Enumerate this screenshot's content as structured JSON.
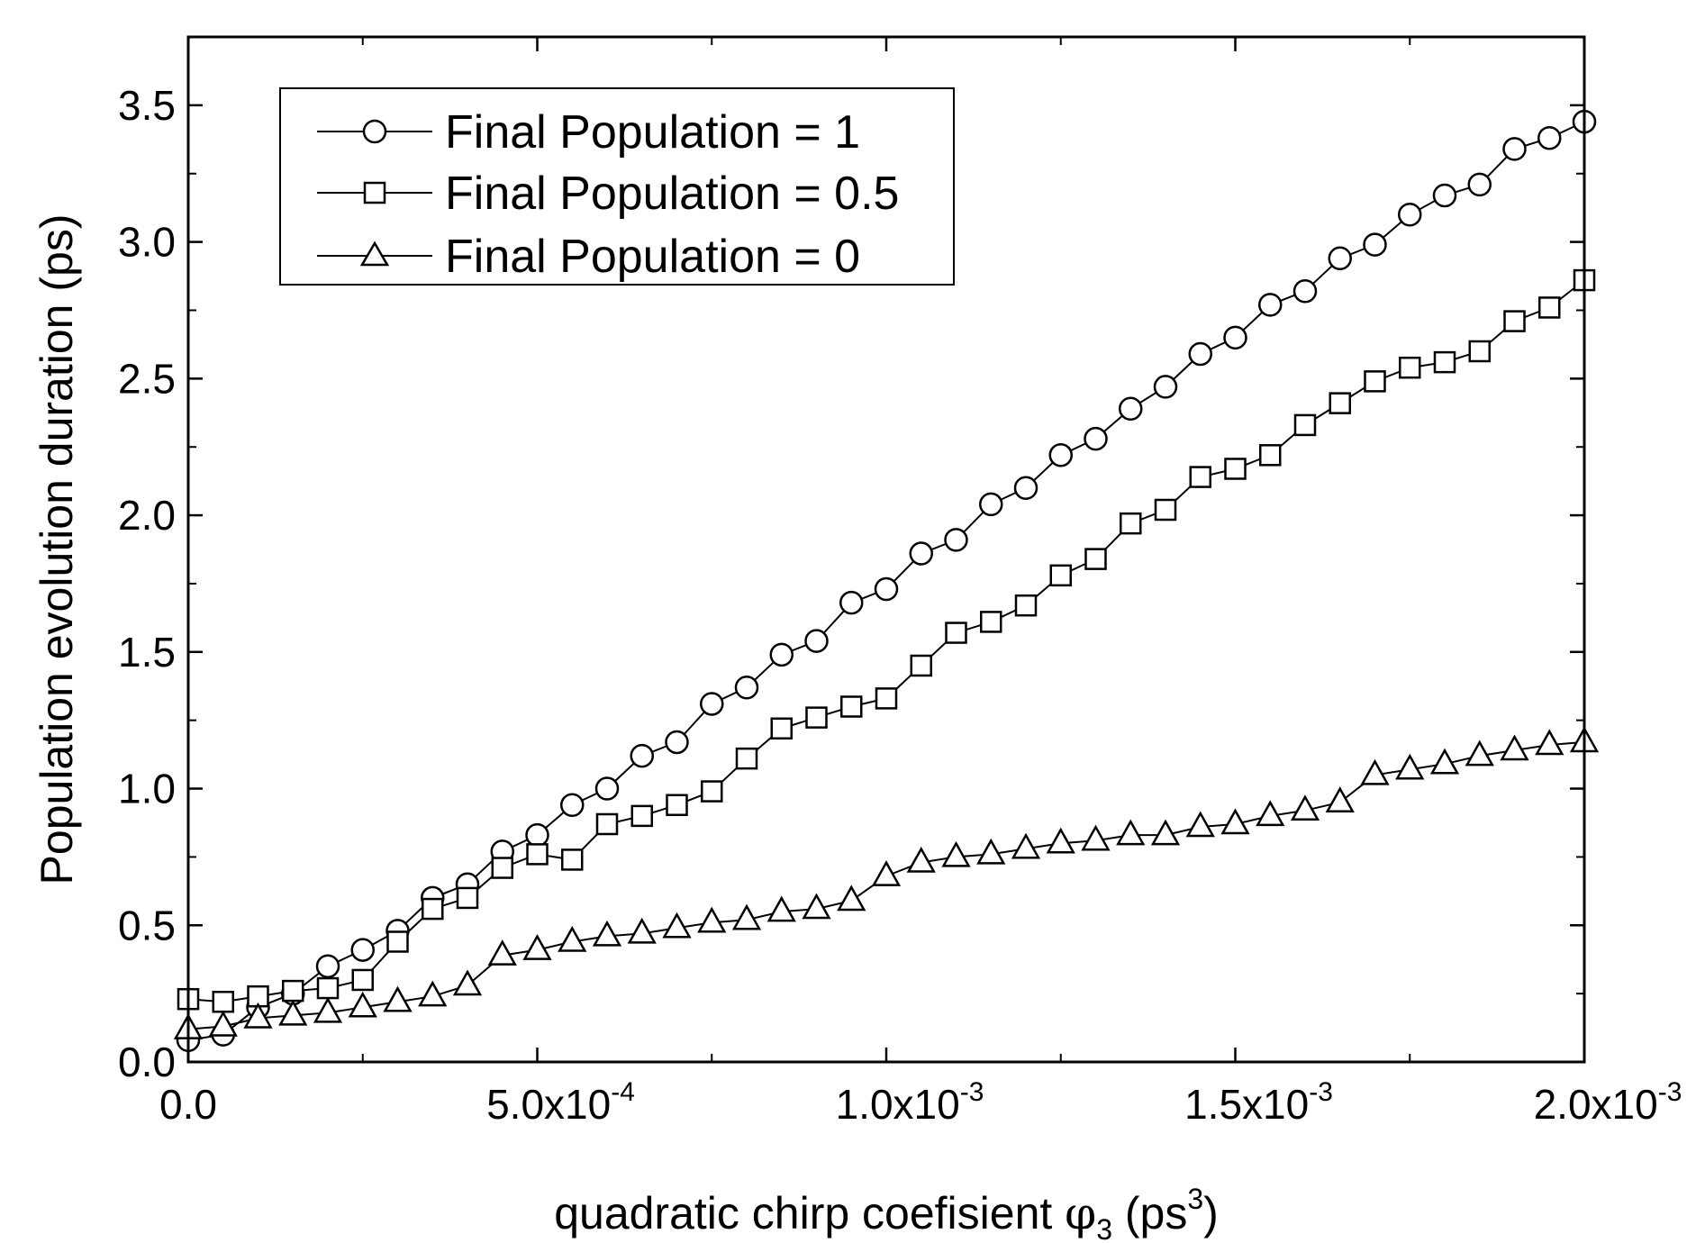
{
  "chart_data": {
    "type": "line",
    "title": "",
    "xlabel": {
      "main": "quadratic chirp coefisient ",
      "symbol": "φ",
      "sub": "3",
      "unit_open": " (ps",
      "unit_sup": "3",
      "unit_close": ")"
    },
    "ylabel": "Population evolution duration (ps)",
    "xlim": [
      0,
      0.002
    ],
    "ylim": [
      0,
      3.75
    ],
    "grid": false,
    "legend_position": "top-left",
    "x_ticks": [
      {
        "value": 0,
        "mantissa": "0.0",
        "exp": ""
      },
      {
        "value": 0.0005,
        "mantissa": "5.0x10",
        "exp": "-4"
      },
      {
        "value": 0.001,
        "mantissa": "1.0x10",
        "exp": "-3"
      },
      {
        "value": 0.0015,
        "mantissa": "1.5x10",
        "exp": "-3"
      },
      {
        "value": 0.002,
        "mantissa": "2.0x10",
        "exp": "-3"
      }
    ],
    "y_ticks": [
      {
        "value": 0.0,
        "label": "0.0"
      },
      {
        "value": 0.5,
        "label": "0.5"
      },
      {
        "value": 1.0,
        "label": "1.0"
      },
      {
        "value": 1.5,
        "label": "1.5"
      },
      {
        "value": 2.0,
        "label": "2.0"
      },
      {
        "value": 2.5,
        "label": "2.5"
      },
      {
        "value": 3.0,
        "label": "3.0"
      },
      {
        "value": 3.5,
        "label": "3.5"
      }
    ],
    "x": [
      0,
      5e-05,
      0.0001,
      0.00015,
      0.0002,
      0.00025,
      0.0003,
      0.00035,
      0.0004,
      0.00045,
      0.0005,
      0.00055,
      0.0006,
      0.00065,
      0.0007,
      0.00075,
      0.0008,
      0.00085,
      0.0009,
      0.00095,
      0.001,
      0.00105,
      0.0011,
      0.00115,
      0.0012,
      0.00125,
      0.0013,
      0.00135,
      0.0014,
      0.00145,
      0.0015,
      0.00155,
      0.0016,
      0.00165,
      0.0017,
      0.00175,
      0.0018,
      0.00185,
      0.0019,
      0.00195,
      0.002
    ],
    "series": [
      {
        "name": "Final Population = 1",
        "marker": "circle",
        "values": [
          0.08,
          0.1,
          0.2,
          0.25,
          0.35,
          0.41,
          0.48,
          0.6,
          0.65,
          0.77,
          0.83,
          0.94,
          1.0,
          1.12,
          1.17,
          1.31,
          1.37,
          1.49,
          1.54,
          1.68,
          1.73,
          1.86,
          1.91,
          2.04,
          2.1,
          2.22,
          2.28,
          2.39,
          2.47,
          2.59,
          2.65,
          2.77,
          2.82,
          2.94,
          2.99,
          3.1,
          3.17,
          3.21,
          3.34,
          3.38,
          3.44
        ]
      },
      {
        "name": "Final Population = 0.5",
        "marker": "square",
        "values": [
          0.23,
          0.22,
          0.24,
          0.26,
          0.27,
          0.3,
          0.44,
          0.56,
          0.6,
          0.71,
          0.76,
          0.74,
          0.87,
          0.9,
          0.94,
          0.99,
          1.11,
          1.22,
          1.26,
          1.3,
          1.33,
          1.45,
          1.57,
          1.61,
          1.67,
          1.78,
          1.84,
          1.97,
          2.02,
          2.14,
          2.17,
          2.22,
          2.33,
          2.41,
          2.49,
          2.54,
          2.56,
          2.6,
          2.71,
          2.76,
          2.86
        ]
      },
      {
        "name": "Final Population = 0",
        "marker": "triangle",
        "values": [
          0.12,
          0.13,
          0.16,
          0.17,
          0.18,
          0.2,
          0.22,
          0.24,
          0.28,
          0.39,
          0.41,
          0.44,
          0.46,
          0.47,
          0.49,
          0.51,
          0.52,
          0.55,
          0.56,
          0.59,
          0.68,
          0.73,
          0.75,
          0.76,
          0.78,
          0.8,
          0.81,
          0.83,
          0.83,
          0.86,
          0.87,
          0.9,
          0.92,
          0.95,
          1.05,
          1.07,
          1.09,
          1.12,
          1.14,
          1.16,
          1.17
        ]
      }
    ]
  }
}
